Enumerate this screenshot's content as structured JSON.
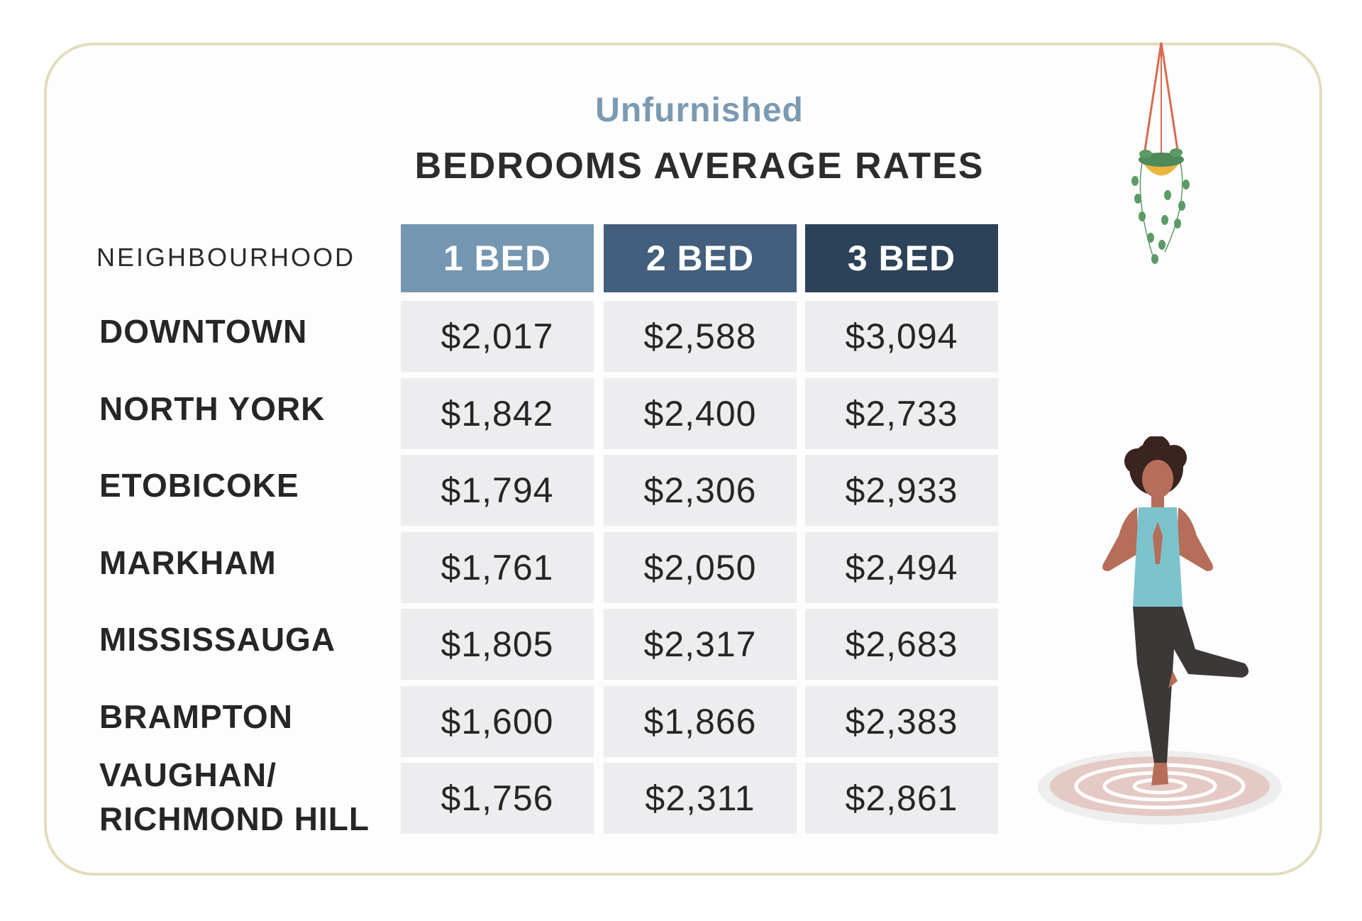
{
  "chart_data": {
    "type": "table",
    "subtitle": "Unfurnished",
    "title": "BEDROOMS AVERAGE RATES",
    "row_header": "NEIGHBOURHOOD",
    "columns": [
      {
        "label": "1 BED",
        "color": "#7596b0"
      },
      {
        "label": "2 BED",
        "color": "#435f7d"
      },
      {
        "label": "3 BED",
        "color": "#2c4259"
      }
    ],
    "rows": [
      {
        "label": "DOWNTOWN",
        "values": [
          "$2,017",
          "$2,588",
          "$3,094"
        ]
      },
      {
        "label": "NORTH YORK",
        "values": [
          "$1,842",
          "$2,400",
          "$2,733"
        ]
      },
      {
        "label": "ETOBICOKE",
        "values": [
          "$1,794",
          "$2,306",
          "$2,933"
        ]
      },
      {
        "label": "MARKHAM",
        "values": [
          "$1,761",
          "$2,050",
          "$2,494"
        ]
      },
      {
        "label": "MISSISSAUGA",
        "values": [
          "$1,805",
          "$2,317",
          "$2,683"
        ]
      },
      {
        "label": "BRAMPTON",
        "values": [
          "$1,600",
          "$1,866",
          "$2,383"
        ]
      },
      {
        "label": "VAUGHAN/\nRICHMOND HILL",
        "values": [
          "$1,756",
          "$2,311",
          "$2,861"
        ]
      }
    ]
  },
  "colors": {
    "card_border": "#e4dcbc",
    "cell_bg": "#ededef",
    "subtitle": "#7b9ab2"
  },
  "decorations": [
    "hanging-plant-illustration",
    "yoga-woman-illustration"
  ]
}
